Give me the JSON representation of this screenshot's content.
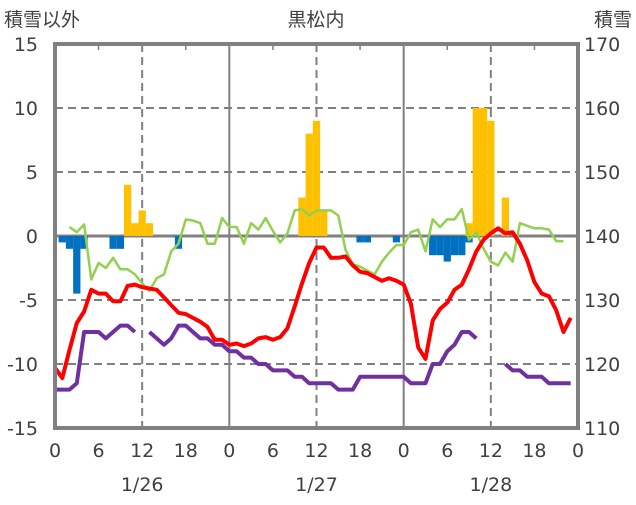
{
  "chart_data": {
    "type": "bar+line",
    "title": "黒松内",
    "left_axis_label": "積雪以外",
    "right_axis_label": "積雪",
    "left_ylim": [
      -15,
      15
    ],
    "left_ticks": [
      "15",
      "10",
      "5",
      "0",
      "-5",
      "-10",
      "-15"
    ],
    "left_tick_values": [
      15,
      10,
      5,
      0,
      -5,
      -10,
      -15
    ],
    "right_ylim": [
      110,
      170
    ],
    "right_ticks": [
      "170",
      "160",
      "150",
      "140",
      "130",
      "120",
      "110"
    ],
    "right_tick_values": [
      170,
      160,
      150,
      140,
      130,
      120,
      110
    ],
    "xlim_hours": [
      0,
      72
    ],
    "x_tick_labels": [
      "0",
      "6",
      "12",
      "18",
      "0",
      "6",
      "12",
      "18",
      "0",
      "6",
      "12",
      "18",
      "0"
    ],
    "date_labels": [
      "1/26",
      "1/27",
      "1/28"
    ],
    "grid": true,
    "colors": {
      "red": "#ff0000",
      "green": "#92d050",
      "purple": "#7030a0",
      "bar_pos": "#ffc000",
      "bar_neg": "#0070c0",
      "axis": "#808080"
    },
    "series": [
      {
        "name": "red-line",
        "axis": "left",
        "values": [
          -10.3,
          -11.1,
          -8.9,
          -6.8,
          -5.9,
          -4.2,
          -4.5,
          -4.5,
          -5.1,
          -5.1,
          -3.9,
          -3.8,
          -4.0,
          -4.1,
          -4.2,
          -4.8,
          -5.4,
          -6.0,
          -6.1,
          -6.4,
          -6.7,
          -7.1,
          -8.1,
          -8.1,
          -8.5,
          -8.4,
          -8.6,
          -8.4,
          -8.0,
          -7.9,
          -8.1,
          -7.9,
          -7.2,
          -5.5,
          -3.7,
          -2.1,
          -0.9,
          -0.9,
          -1.7,
          -1.7,
          -1.6,
          -2.3,
          -2.8,
          -2.9,
          -3.2,
          -3.5,
          -3.3,
          -3.5,
          -3.8,
          -5.3,
          -8.7,
          -9.6,
          -6.6,
          -5.7,
          -5.2,
          -4.2,
          -3.8,
          -2.6,
          -1.2,
          -0.3,
          0.2,
          0.6,
          0.2,
          0.3,
          -0.6,
          -1.9,
          -3.6,
          -4.5,
          -4.7,
          -5.8,
          -7.5,
          -6.4
        ]
      },
      {
        "name": "green-line",
        "axis": "left",
        "values": [
          null,
          null,
          0.7,
          0.3,
          0.9,
          -3.4,
          -2.1,
          -2.5,
          -1.7,
          -2.6,
          -2.6,
          -3.0,
          -3.7,
          -4.3,
          -3.3,
          -3.0,
          -1.2,
          -0.6,
          1.3,
          1.2,
          1.0,
          -0.6,
          -0.6,
          1.4,
          0.7,
          0.7,
          -0.6,
          1.0,
          0.5,
          1.4,
          0.4,
          -0.5,
          0.2,
          2.0,
          2.1,
          1.6,
          2.0,
          2.0,
          2.0,
          1.6,
          -1.1,
          -2.2,
          -2.4,
          -2.7,
          -3.0,
          -2.0,
          -1.3,
          -0.7,
          -0.7,
          0.3,
          0.5,
          -1.2,
          1.3,
          0.7,
          1.3,
          1.3,
          2.1,
          -0.3,
          0.3,
          -1.0,
          -2.0,
          -2.3,
          -1.3,
          -2.0,
          1.0,
          0.8,
          0.6,
          0.6,
          0.5,
          -0.4,
          -0.4,
          null
        ]
      },
      {
        "name": "purple-line",
        "axis": "right",
        "values": [
          116,
          116,
          116,
          117,
          125,
          125,
          125,
          124,
          125,
          126,
          126,
          125,
          null,
          125,
          124,
          123,
          124,
          126,
          126,
          125,
          124,
          124,
          123,
          123,
          122,
          122,
          121,
          121,
          120,
          120,
          119,
          119,
          119,
          118,
          118,
          117,
          117,
          117,
          117,
          116,
          116,
          116,
          118,
          118,
          118,
          118,
          118,
          118,
          118,
          117,
          117,
          117,
          120,
          120,
          122,
          123,
          125,
          125,
          124,
          null,
          null,
          null,
          120,
          119,
          119,
          118,
          118,
          118,
          117,
          117,
          117,
          117
        ]
      }
    ],
    "bars": {
      "axis": "left",
      "values": {
        "1": -0.5,
        "2": -1.0,
        "3": -4.5,
        "4": -1.0,
        "8": -1.0,
        "9": -1.0,
        "10": 4.0,
        "11": 1.0,
        "12": 2.0,
        "13": 1.0,
        "17": -1.0,
        "34": 3.0,
        "35": 8.0,
        "36": 9.0,
        "37": 2.0,
        "42": -0.5,
        "43": -0.5,
        "47": -0.5,
        "52": -1.5,
        "53": -1.5,
        "54": -2.0,
        "55": -1.5,
        "56": -1.5,
        "57": 1.0,
        "58": 10.0,
        "59": 10.0,
        "60": 9.0,
        "62": 3.0
      },
      "extra_negative": {
        "57": -0.5
      }
    }
  }
}
